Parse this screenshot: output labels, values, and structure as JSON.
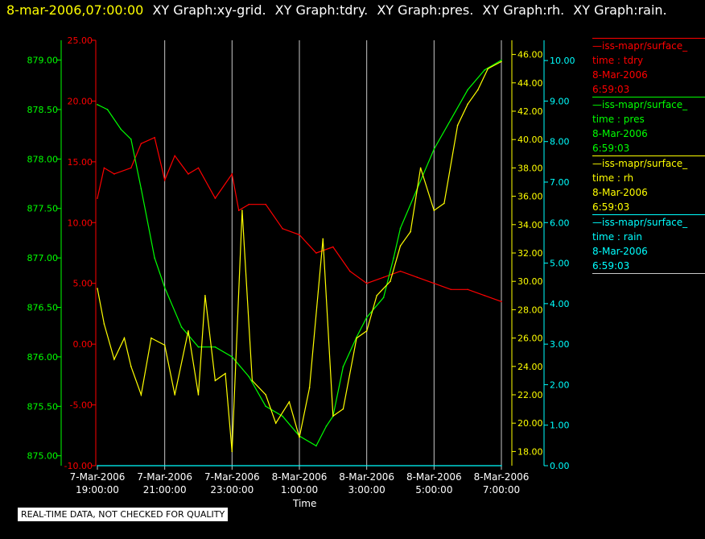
{
  "header": {
    "timestamp": "8-mar-2006,07:00:00",
    "graph_titles": [
      "XY Graph:xy-grid.",
      "XY Graph:tdry.",
      "XY Graph:pres.",
      "XY Graph:rh.",
      "XY Graph:rain."
    ]
  },
  "colors": {
    "tdry": "#ff0000",
    "pres": "#00ff00",
    "rh": "#ffff00",
    "rain": "#00ffff",
    "grid": "#c8c8c8",
    "background": "#000000"
  },
  "legend": [
    {
      "name": "iss-mapr/surface_",
      "var": "time : tdry",
      "date": "8-Mar-2006",
      "time": "6:59:03",
      "color": "#ff0000"
    },
    {
      "name": "iss-mapr/surface_",
      "var": "time : pres",
      "date": "8-Mar-2006",
      "time": "6:59:03",
      "color": "#00ff00"
    },
    {
      "name": "iss-mapr/surface_",
      "var": "time : rh",
      "date": "8-Mar-2006",
      "time": "6:59:03",
      "color": "#ffff00"
    },
    {
      "name": "iss-mapr/surface_",
      "var": "time : rain",
      "date": "8-Mar-2006",
      "time": "6:59:03",
      "color": "#00ffff"
    }
  ],
  "notice": "REAL-TIME DATA, NOT CHECKED FOR QUALITY",
  "chart_data": {
    "type": "line",
    "xlabel": "Time",
    "x_ticks": [
      {
        "date": "7-Mar-2006",
        "time": "19:00:00"
      },
      {
        "date": "7-Mar-2006",
        "time": "21:00:00"
      },
      {
        "date": "7-Mar-2006",
        "time": "23:00:00"
      },
      {
        "date": "8-Mar-2006",
        "time": "1:00:00"
      },
      {
        "date": "8-Mar-2006",
        "time": "3:00:00"
      },
      {
        "date": "8-Mar-2006",
        "time": "5:00:00"
      },
      {
        "date": "8-Mar-2006",
        "time": "7:00:00"
      }
    ],
    "x_range": [
      "7-Mar-2006 19:00",
      "8-Mar-2006 7:00"
    ],
    "grid": "vertical lines at x ticks",
    "axes": {
      "tdry": {
        "range": [
          -10,
          25
        ],
        "ticks": [
          "25.00",
          "20.00",
          "15.00",
          "10.00",
          "5.00",
          "0.00",
          "-5.00",
          "-10.00"
        ],
        "side": "left-inner"
      },
      "pres": {
        "range": [
          874.9,
          879.2
        ],
        "ticks": [
          "879.00",
          "878.50",
          "878.00",
          "877.50",
          "877.00",
          "876.50",
          "876.00",
          "875.50",
          "875.00"
        ],
        "side": "left-outer"
      },
      "rh": {
        "range": [
          17,
          47
        ],
        "ticks": [
          "46.00",
          "44.00",
          "42.00",
          "40.00",
          "38.00",
          "36.00",
          "34.00",
          "32.00",
          "30.00",
          "28.00",
          "26.00",
          "24.00",
          "22.00",
          "20.00",
          "18.00"
        ],
        "side": "right-inner"
      },
      "rain": {
        "range": [
          0,
          10.5
        ],
        "ticks": [
          "10.00",
          "9.00",
          "8.00",
          "7.00",
          "6.00",
          "5.00",
          "4.00",
          "3.00",
          "2.00",
          "1.00",
          "0.00"
        ],
        "side": "right-outer"
      }
    },
    "series": [
      {
        "name": "tdry",
        "axis": "tdry",
        "x": [
          19.0,
          19.2,
          19.5,
          20.0,
          20.3,
          20.7,
          21.0,
          21.3,
          21.7,
          22.0,
          22.5,
          23.0,
          23.2,
          23.5,
          24.0,
          24.5,
          25.0,
          25.5,
          26.0,
          26.5,
          27.0,
          27.5,
          28.0,
          28.5,
          29.0,
          29.5,
          30.0,
          30.5,
          31.0
        ],
        "values": [
          12.0,
          14.5,
          14.0,
          14.5,
          16.5,
          17.0,
          13.5,
          15.5,
          14.0,
          14.5,
          12.0,
          14.0,
          11.0,
          11.5,
          11.5,
          9.5,
          9.0,
          7.5,
          8.0,
          6.0,
          5.0,
          5.5,
          6.0,
          5.5,
          5.0,
          4.5,
          4.5,
          4.0,
          3.5
        ]
      },
      {
        "name": "pres",
        "axis": "pres",
        "x": [
          19.0,
          19.3,
          19.7,
          20.0,
          20.3,
          20.7,
          21.0,
          21.5,
          22.0,
          22.5,
          23.0,
          23.5,
          24.0,
          24.5,
          25.0,
          25.5,
          25.8,
          26.0,
          26.3,
          26.7,
          27.0,
          27.5,
          27.8,
          28.0,
          28.5,
          29.0,
          29.5,
          30.0,
          30.5,
          31.0
        ],
        "values": [
          878.55,
          878.5,
          878.3,
          878.2,
          877.7,
          877.0,
          876.7,
          876.3,
          876.1,
          876.1,
          876.0,
          875.8,
          875.5,
          875.4,
          875.2,
          875.1,
          875.3,
          875.4,
          875.9,
          876.2,
          876.4,
          876.6,
          877.0,
          877.3,
          877.7,
          878.1,
          878.4,
          878.7,
          878.9,
          879.0
        ]
      },
      {
        "name": "rh",
        "axis": "rh",
        "x": [
          19.0,
          19.2,
          19.5,
          19.8,
          20.0,
          20.3,
          20.6,
          21.0,
          21.3,
          21.7,
          22.0,
          22.2,
          22.5,
          22.8,
          23.0,
          23.3,
          23.6,
          24.0,
          24.3,
          24.7,
          25.0,
          25.3,
          25.7,
          26.0,
          26.3,
          26.7,
          27.0,
          27.3,
          27.7,
          28.0,
          28.3,
          28.6,
          29.0,
          29.3,
          29.7,
          30.0,
          30.3,
          30.6,
          31.0
        ],
        "values": [
          29.5,
          27.0,
          24.5,
          26.0,
          24.0,
          22.0,
          26.0,
          25.5,
          22.0,
          26.5,
          22.0,
          29.0,
          23.0,
          23.5,
          18.0,
          35.0,
          23.0,
          22.0,
          20.0,
          21.5,
          19.0,
          22.5,
          33.0,
          20.5,
          21.0,
          26.0,
          26.5,
          29.0,
          30.0,
          32.5,
          33.5,
          38.0,
          35.0,
          35.5,
          41.0,
          42.5,
          43.5,
          45.0,
          45.5
        ]
      },
      {
        "name": "rain",
        "axis": "rain",
        "x": [
          19.0,
          31.0
        ],
        "values": [
          0.0,
          0.0
        ]
      }
    ]
  }
}
